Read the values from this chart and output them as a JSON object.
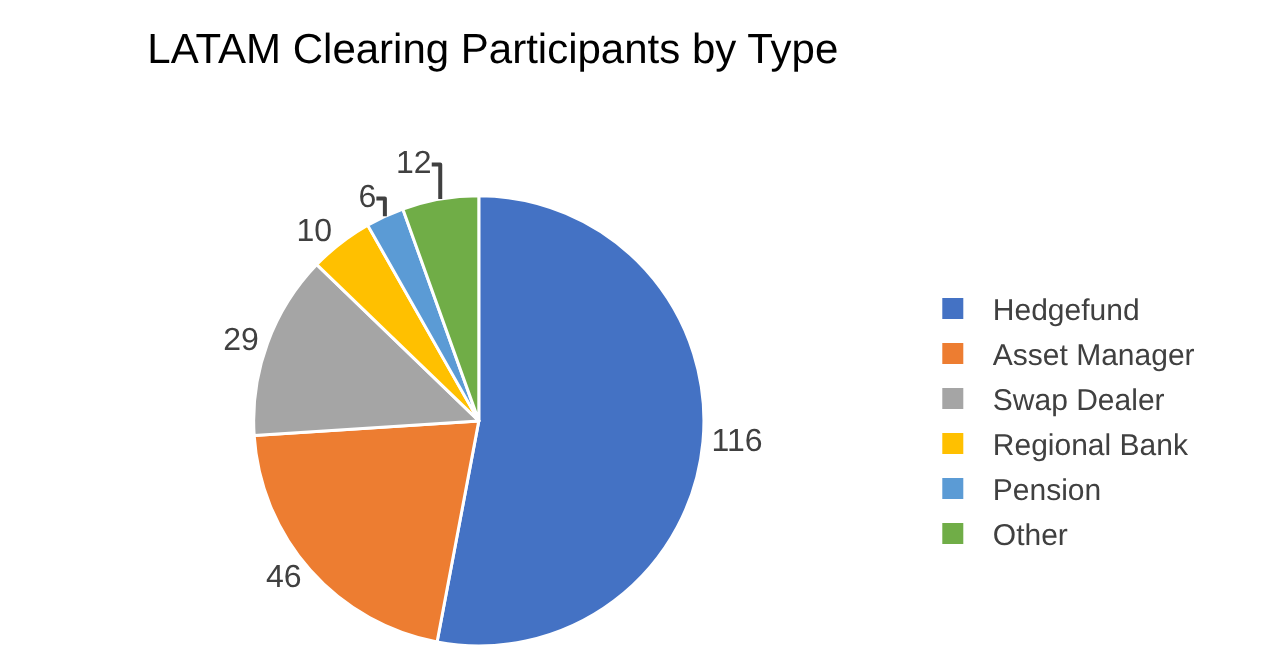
{
  "chart_data": {
    "type": "pie",
    "title": "LATAM Clearing Participants by Type",
    "categories": [
      "Hedgefund",
      "Asset Manager",
      "Swap Dealer",
      "Regional Bank",
      "Pension",
      "Other"
    ],
    "values": [
      116,
      46,
      29,
      10,
      6,
      12
    ],
    "colors": [
      "#4472c4",
      "#ed7d31",
      "#a5a5a5",
      "#ffc000",
      "#5b9bd5",
      "#70ad47"
    ],
    "data_labels": true,
    "legend": "right"
  }
}
